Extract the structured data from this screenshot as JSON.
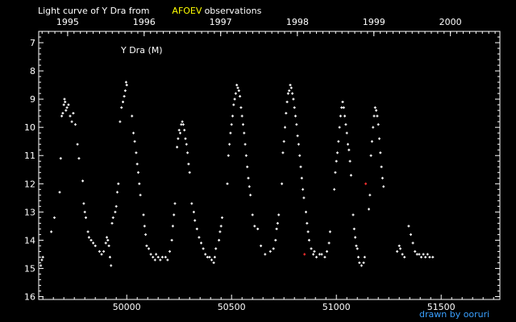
{
  "header": {
    "title_part1": "Light curve of Y Dra from",
    "title_highlight": "AFOEV",
    "title_part2": "observations",
    "highlight_color": "#ffff00"
  },
  "credit": {
    "text": "drawn by ooruri",
    "color": "#3aa0ff"
  },
  "chart_data": {
    "type": "scatter",
    "title": "Y Dra (M)",
    "xlabel": "",
    "ylabel": "",
    "xlim": [
      49580,
      51780
    ],
    "ylim": [
      16.1,
      6.6
    ],
    "y_inverted": true,
    "grid": false,
    "axis_color": "#ffffff",
    "bottom_ticks": [
      {
        "value": 50000,
        "label": "50000"
      },
      {
        "value": 50500,
        "label": "50500"
      },
      {
        "value": 51000,
        "label": "51000"
      },
      {
        "value": 51500,
        "label": "51500"
      }
    ],
    "top_ticks": [
      {
        "value": 49718,
        "label": "1995"
      },
      {
        "value": 50083,
        "label": "1996"
      },
      {
        "value": 50448,
        "label": "1997"
      },
      {
        "value": 50814,
        "label": "1998"
      },
      {
        "value": 51179,
        "label": "1999"
      },
      {
        "value": 51544,
        "label": "2000"
      }
    ],
    "y_ticks": [
      7,
      8,
      9,
      10,
      11,
      12,
      13,
      14,
      15,
      16
    ],
    "series": [
      {
        "color": "#ffffff",
        "points": [
          [
            49590,
            14.9
          ],
          [
            49595,
            14.7
          ],
          [
            49600,
            14.6
          ],
          [
            49640,
            13.7
          ],
          [
            49655,
            13.2
          ],
          [
            49680,
            12.3
          ],
          [
            49685,
            11.1
          ],
          [
            49690,
            9.6
          ],
          [
            49695,
            9.5
          ],
          [
            49700,
            9.2
          ],
          [
            49703,
            9.0
          ],
          [
            49706,
            9.1
          ],
          [
            49710,
            9.4
          ],
          [
            49715,
            9.3
          ],
          [
            49722,
            9.2
          ],
          [
            49730,
            9.6
          ],
          [
            49738,
            9.8
          ],
          [
            49745,
            9.5
          ],
          [
            49755,
            9.9
          ],
          [
            49765,
            10.6
          ],
          [
            49772,
            11.1
          ],
          [
            49790,
            11.9
          ],
          [
            49795,
            12.7
          ],
          [
            49800,
            13.0
          ],
          [
            49805,
            13.2
          ],
          [
            49815,
            13.7
          ],
          [
            49820,
            13.9
          ],
          [
            49830,
            14.0
          ],
          [
            49840,
            14.1
          ],
          [
            49850,
            14.2
          ],
          [
            49870,
            14.4
          ],
          [
            49880,
            14.5
          ],
          [
            49890,
            14.4
          ],
          [
            49900,
            14.1
          ],
          [
            49905,
            13.9
          ],
          [
            49910,
            14.0
          ],
          [
            49915,
            14.2
          ],
          [
            49920,
            14.6
          ],
          [
            49925,
            14.9
          ],
          [
            49930,
            13.4
          ],
          [
            49935,
            13.2
          ],
          [
            49945,
            13.0
          ],
          [
            49950,
            12.8
          ],
          [
            49955,
            12.3
          ],
          [
            49960,
            12.0
          ],
          [
            49968,
            9.8
          ],
          [
            49975,
            9.3
          ],
          [
            49982,
            9.1
          ],
          [
            49988,
            8.9
          ],
          [
            49993,
            8.7
          ],
          [
            49997,
            8.4
          ],
          [
            50000,
            8.5
          ],
          [
            50025,
            9.6
          ],
          [
            50032,
            10.2
          ],
          [
            50038,
            10.5
          ],
          [
            50045,
            10.9
          ],
          [
            50050,
            11.3
          ],
          [
            50055,
            11.6
          ],
          [
            50060,
            12.0
          ],
          [
            50065,
            12.4
          ],
          [
            50080,
            13.1
          ],
          [
            50085,
            13.5
          ],
          [
            50090,
            13.8
          ],
          [
            50095,
            14.2
          ],
          [
            50105,
            14.3
          ],
          [
            50115,
            14.5
          ],
          [
            50125,
            14.6
          ],
          [
            50135,
            14.7
          ],
          [
            50140,
            14.5
          ],
          [
            50150,
            14.6
          ],
          [
            50160,
            14.7
          ],
          [
            50170,
            14.6
          ],
          [
            50185,
            14.6
          ],
          [
            50195,
            14.7
          ],
          [
            50205,
            14.4
          ],
          [
            50215,
            14.0
          ],
          [
            50220,
            13.5
          ],
          [
            50225,
            13.1
          ],
          [
            50230,
            12.7
          ],
          [
            50240,
            10.7
          ],
          [
            50245,
            10.4
          ],
          [
            50250,
            10.1
          ],
          [
            50255,
            10.2
          ],
          [
            50260,
            9.9
          ],
          [
            50265,
            9.8
          ],
          [
            50270,
            9.9
          ],
          [
            50275,
            10.1
          ],
          [
            50280,
            10.4
          ],
          [
            50285,
            10.6
          ],
          [
            50290,
            10.9
          ],
          [
            50295,
            11.3
          ],
          [
            50300,
            11.6
          ],
          [
            50310,
            12.7
          ],
          [
            50320,
            13.0
          ],
          [
            50325,
            13.3
          ],
          [
            50335,
            13.6
          ],
          [
            50345,
            13.9
          ],
          [
            50355,
            14.1
          ],
          [
            50365,
            14.3
          ],
          [
            50375,
            14.5
          ],
          [
            50385,
            14.6
          ],
          [
            50395,
            14.6
          ],
          [
            50405,
            14.7
          ],
          [
            50415,
            14.8
          ],
          [
            50420,
            14.6
          ],
          [
            50425,
            14.3
          ],
          [
            50440,
            14.0
          ],
          [
            50445,
            13.7
          ],
          [
            50450,
            13.5
          ],
          [
            50455,
            13.2
          ],
          [
            50480,
            12.0
          ],
          [
            50485,
            11.0
          ],
          [
            50490,
            10.6
          ],
          [
            50495,
            10.2
          ],
          [
            50500,
            9.9
          ],
          [
            50505,
            9.6
          ],
          [
            50510,
            9.2
          ],
          [
            50515,
            9.0
          ],
          [
            50520,
            8.8
          ],
          [
            50525,
            8.5
          ],
          [
            50530,
            8.6
          ],
          [
            50535,
            8.7
          ],
          [
            50540,
            8.9
          ],
          [
            50545,
            9.3
          ],
          [
            50550,
            9.6
          ],
          [
            50555,
            9.9
          ],
          [
            50560,
            10.2
          ],
          [
            50565,
            10.6
          ],
          [
            50570,
            11.0
          ],
          [
            50575,
            11.4
          ],
          [
            50580,
            11.8
          ],
          [
            50585,
            12.1
          ],
          [
            50590,
            12.4
          ],
          [
            50600,
            13.1
          ],
          [
            50610,
            13.5
          ],
          [
            50625,
            13.6
          ],
          [
            50640,
            14.2
          ],
          [
            50660,
            14.5
          ],
          [
            50685,
            14.4
          ],
          [
            50700,
            14.3
          ],
          [
            50710,
            14.0
          ],
          [
            50715,
            13.6
          ],
          [
            50720,
            13.4
          ],
          [
            50725,
            13.1
          ],
          [
            50740,
            12.0
          ],
          [
            50745,
            10.9
          ],
          [
            50750,
            10.5
          ],
          [
            50755,
            10.0
          ],
          [
            50760,
            9.5
          ],
          [
            50765,
            9.1
          ],
          [
            50770,
            8.8
          ],
          [
            50775,
            8.7
          ],
          [
            50780,
            8.5
          ],
          [
            50785,
            8.6
          ],
          [
            50790,
            8.8
          ],
          [
            50795,
            9.0
          ],
          [
            50800,
            9.3
          ],
          [
            50805,
            9.6
          ],
          [
            50810,
            9.9
          ],
          [
            50815,
            10.3
          ],
          [
            50820,
            10.6
          ],
          [
            50825,
            11.0
          ],
          [
            50830,
            11.4
          ],
          [
            50835,
            11.8
          ],
          [
            50840,
            12.2
          ],
          [
            50845,
            12.5
          ],
          [
            50855,
            13.0
          ],
          [
            50860,
            13.4
          ],
          [
            50865,
            13.7
          ],
          [
            50870,
            14.0
          ],
          [
            50880,
            14.3
          ],
          [
            50890,
            14.5
          ],
          [
            50895,
            14.4
          ],
          [
            50905,
            14.6
          ],
          [
            50920,
            14.5
          ],
          [
            50930,
            14.5
          ],
          [
            50945,
            14.6
          ],
          [
            50955,
            14.4
          ],
          [
            50965,
            14.1
          ],
          [
            50970,
            13.7
          ],
          [
            50990,
            12.2
          ],
          [
            50995,
            11.6
          ],
          [
            51000,
            11.2
          ],
          [
            51005,
            10.9
          ],
          [
            51010,
            10.5
          ],
          [
            51015,
            10.0
          ],
          [
            51020,
            9.6
          ],
          [
            51025,
            9.3
          ],
          [
            51030,
            9.1
          ],
          [
            51035,
            9.3
          ],
          [
            51040,
            9.6
          ],
          [
            51045,
            9.9
          ],
          [
            51050,
            10.2
          ],
          [
            51055,
            10.6
          ],
          [
            51060,
            10.8
          ],
          [
            51065,
            11.2
          ],
          [
            51070,
            11.7
          ],
          [
            51080,
            13.1
          ],
          [
            51085,
            13.6
          ],
          [
            51090,
            13.9
          ],
          [
            51095,
            14.2
          ],
          [
            51100,
            14.3
          ],
          [
            51105,
            14.6
          ],
          [
            51110,
            14.8
          ],
          [
            51120,
            14.9
          ],
          [
            51130,
            14.8
          ],
          [
            51135,
            14.6
          ],
          [
            51155,
            12.9
          ],
          [
            51160,
            12.4
          ],
          [
            51165,
            11.0
          ],
          [
            51170,
            10.5
          ],
          [
            51175,
            10.0
          ],
          [
            51180,
            9.6
          ],
          [
            51185,
            9.3
          ],
          [
            51190,
            9.4
          ],
          [
            51195,
            9.6
          ],
          [
            51200,
            9.9
          ],
          [
            51205,
            10.4
          ],
          [
            51210,
            10.9
          ],
          [
            51215,
            11.4
          ],
          [
            51220,
            11.8
          ],
          [
            51225,
            12.1
          ],
          [
            51290,
            14.4
          ],
          [
            51300,
            14.2
          ],
          [
            51305,
            14.3
          ],
          [
            51315,
            14.5
          ],
          [
            51325,
            14.6
          ],
          [
            51345,
            13.5
          ],
          [
            51355,
            13.8
          ],
          [
            51365,
            14.1
          ],
          [
            51375,
            14.4
          ],
          [
            51385,
            14.5
          ],
          [
            51395,
            14.5
          ],
          [
            51405,
            14.6
          ],
          [
            51415,
            14.5
          ],
          [
            51425,
            14.6
          ],
          [
            51435,
            14.5
          ],
          [
            51445,
            14.6
          ],
          [
            51460,
            14.6
          ]
        ]
      },
      {
        "color": "#ff3030",
        "points": [
          [
            50848,
            14.5
          ],
          [
            51140,
            12.0
          ]
        ]
      }
    ]
  }
}
